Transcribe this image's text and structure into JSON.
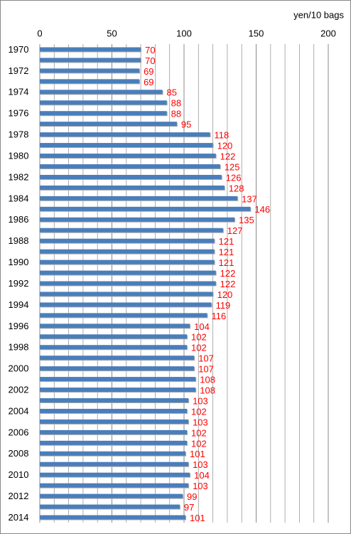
{
  "chart_data": {
    "type": "hbar",
    "x_label": "yen/10 bags",
    "categories": [
      "1970",
      null,
      "1972",
      null,
      "1974",
      null,
      "1976",
      null,
      "1978",
      null,
      "1980",
      null,
      "1982",
      null,
      "1984",
      null,
      "1986",
      null,
      "1988",
      null,
      "1990",
      null,
      "1992",
      null,
      "1994",
      null,
      "1996",
      null,
      "1998",
      null,
      "2000",
      null,
      "2002",
      null,
      "2004",
      null,
      "2006",
      null,
      "2008",
      null,
      "2010",
      null,
      "2012",
      null,
      "2014"
    ],
    "values": [
      70,
      70,
      69,
      69,
      85,
      88,
      88,
      95,
      118,
      120,
      122,
      125,
      126,
      128,
      137,
      146,
      135,
      127,
      121,
      121,
      121,
      122,
      122,
      120,
      119,
      116,
      104,
      102,
      102,
      107,
      107,
      108,
      108,
      103,
      102,
      103,
      102,
      102,
      101,
      103,
      104,
      103,
      99,
      97,
      101
    ],
    "color": "#4a7ebb",
    "label_color": "#ff0000",
    "xlim": [
      0,
      200
    ],
    "xticks": [
      0,
      50,
      100,
      150,
      200
    ],
    "grid": true,
    "minor_grid_step": 10
  }
}
